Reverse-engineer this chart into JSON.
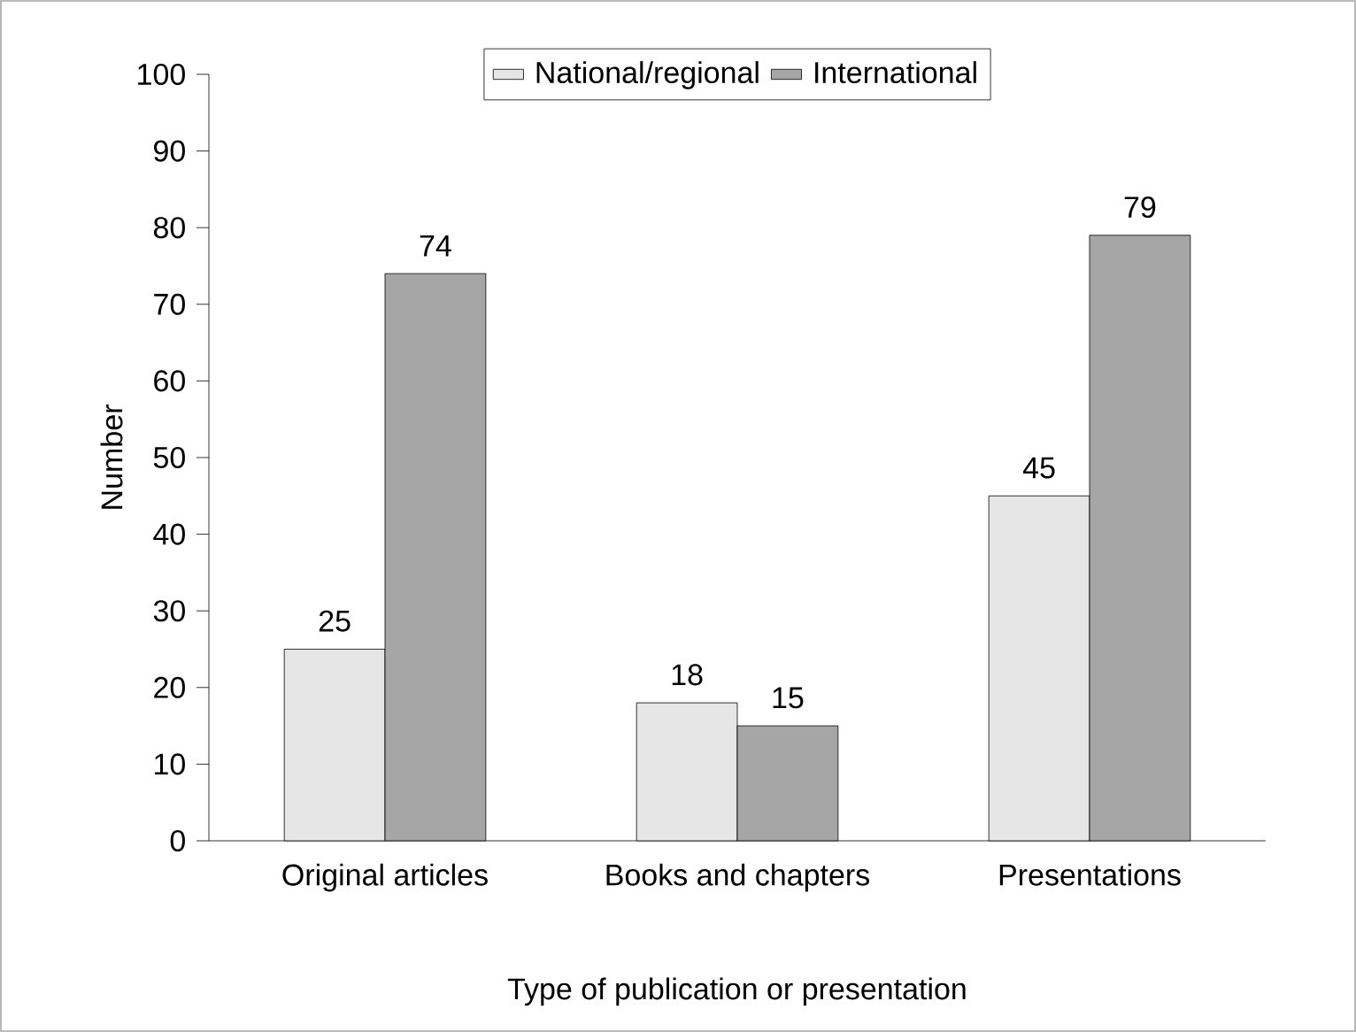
{
  "chart_data": {
    "type": "bar",
    "xlabel": "Type of publication or presentation",
    "ylabel": "Number",
    "categories": [
      "Original articles",
      "Books and chapters",
      "Presentations"
    ],
    "series": [
      {
        "name": "National/regional",
        "color": "#e6e6e6",
        "values": [
          25,
          18,
          45
        ]
      },
      {
        "name": "International",
        "color": "#a6a6a6",
        "values": [
          74,
          15,
          79
        ]
      }
    ],
    "ylim": [
      0,
      100
    ],
    "yticks": [
      0,
      10,
      20,
      30,
      40,
      50,
      60,
      70,
      80,
      90,
      100
    ],
    "legend": "top",
    "data_labels": true
  }
}
